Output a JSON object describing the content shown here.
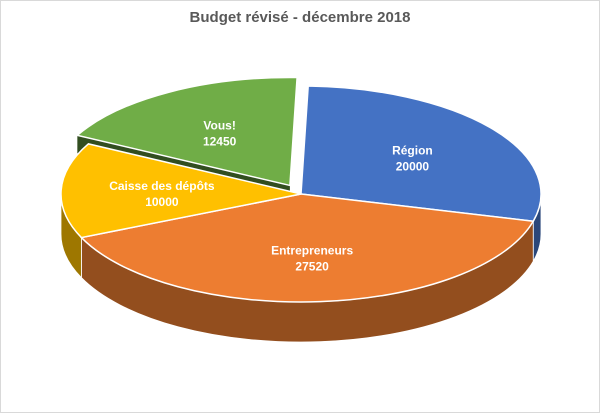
{
  "chart_data": {
    "type": "pie",
    "title": "Budget révisé - décembre 2018",
    "categories": [
      "Région",
      "Entrepreneurs",
      "Caisse des dépôts",
      "Vous!"
    ],
    "values": [
      20000,
      27520,
      10000,
      12450
    ],
    "colors": [
      "#4472C4",
      "#ED7D31",
      "#FFC000",
      "#70AD47"
    ],
    "label_colors": [
      "#ffffff",
      "#ffffff",
      "#ffffff",
      "#ffffff"
    ],
    "exploded": [
      "Vous!"
    ],
    "style": "3d-pie",
    "legend": "none"
  }
}
